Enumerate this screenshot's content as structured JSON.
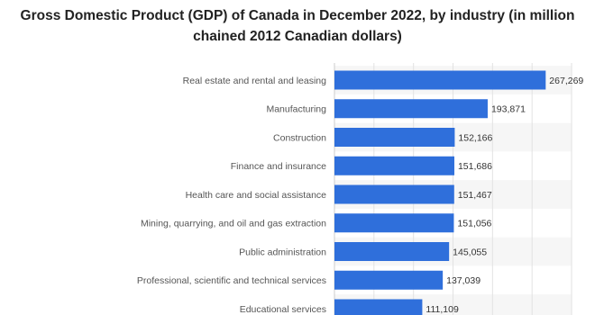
{
  "chart_data": {
    "type": "bar",
    "orientation": "horizontal",
    "title": "Gross Domestic Product (GDP) of Canada in December 2022, by industry (in million chained 2012 Canadian dollars)",
    "xlabel": "",
    "ylabel": "",
    "categories": [
      "Real estate and rental and leasing",
      "Manufacturing",
      "Construction",
      "Finance and insurance",
      "Health care and social assistance",
      "Mining, quarrying, and oil and gas extraction",
      "Public administration",
      "Professional, scientific and technical services",
      "Educational services"
    ],
    "values": [
      267269,
      193871,
      152166,
      151686,
      151467,
      151056,
      145055,
      137039,
      111109
    ],
    "value_labels": [
      "267,269",
      "193,871",
      "152,166",
      "151,686",
      "151,467",
      "151,056",
      "145,055",
      "137,039",
      "111,109"
    ],
    "xlim": [
      0,
      300000
    ],
    "grid": true,
    "legend": "none",
    "bar_color": "#2f6fdb"
  }
}
